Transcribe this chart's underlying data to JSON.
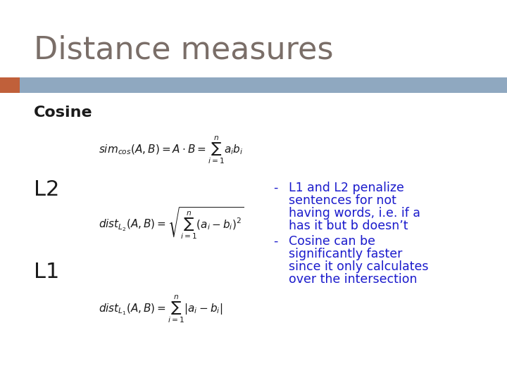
{
  "title": "Distance measures",
  "title_color": "#7a6e68",
  "title_fontsize": 32,
  "bg_color": "#ffffff",
  "header_bar_color": "#8fa8c0",
  "header_bar_accent_color": "#c0603a",
  "section_cosine": "Cosine",
  "section_l2": "L2",
  "section_l1": "L1",
  "section_color": "#1a1a1a",
  "formula_color": "#1a1a1a",
  "bullet_color": "#1a1acc",
  "bullet_fontsize": 12.5,
  "bullet1_line1": "L1 and L2 penalize",
  "bullet1_line2": "sentences for not",
  "bullet1_line3": "having words, i.e. if a",
  "bullet1_line4": "has it but b doesn’t",
  "bullet2_line1": "Cosine can be",
  "bullet2_line2": "significantly faster",
  "bullet2_line3": "since it only calculates",
  "bullet2_line4": "over the intersection",
  "formula_cosine": "$\\mathit{sim}_{\\mathit{cos}}(A,B)=A\\Box B=\\Box_{i=1}^{n}\\; a_i b_i$",
  "formula_l2": "$\\mathit{dist}_{L_2}(A,B)=\\sqrt{\\Box_{i=1}^{n}(a_i\\Box b_i)^2}$",
  "formula_l1": "$\\mathit{dist}_{L_1}(A,B)=\\Box_{i=1}^{n}|a_i\\Box b_i|$"
}
